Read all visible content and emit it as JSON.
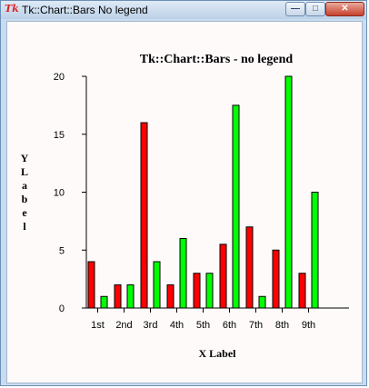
{
  "window": {
    "title": "Tk::Chart::Bars No legend",
    "icon": "tk-icon",
    "controls": {
      "minimize": "minimize-icon",
      "maximize": "maximize-icon",
      "close": "close-icon"
    }
  },
  "chart_data": {
    "type": "bar",
    "title": "Tk::Chart::Bars - no legend",
    "xlabel": "X Label",
    "ylabel": "Y Label",
    "categories": [
      "1st",
      "2nd",
      "3rd",
      "4th",
      "5th",
      "6th",
      "7th",
      "8th",
      "9th"
    ],
    "series": [
      {
        "color": "#ff0000",
        "values": [
          4,
          2,
          16,
          2,
          3,
          5.5,
          7,
          5,
          3
        ]
      },
      {
        "color": "#00ff00",
        "values": [
          1,
          2,
          4,
          6,
          3,
          17.5,
          1,
          20,
          10
        ]
      }
    ],
    "ylim": [
      0,
      20
    ],
    "yticks": [
      0,
      5,
      10,
      15,
      20
    ],
    "grid": false,
    "legend": "none",
    "background": "#fffafa"
  }
}
